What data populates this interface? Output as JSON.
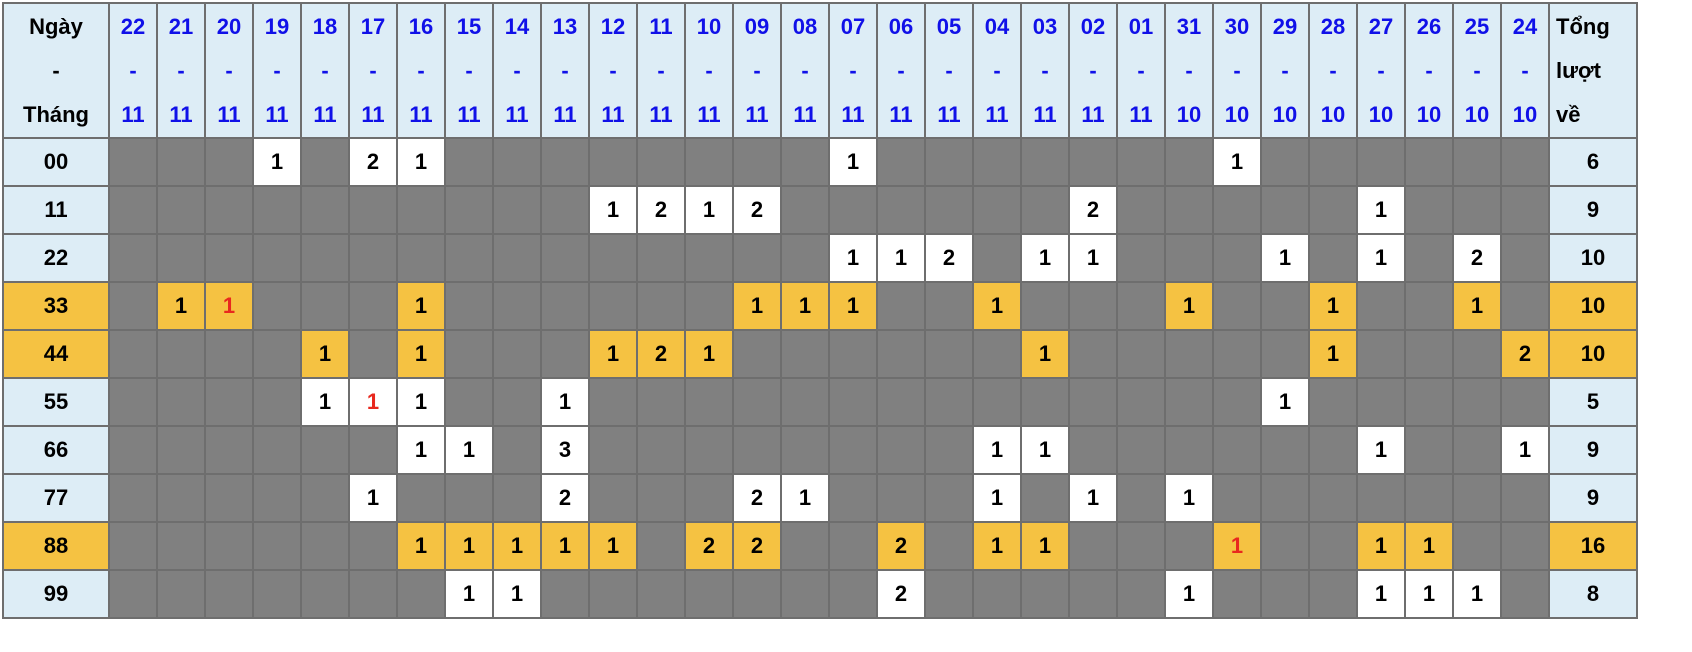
{
  "header": {
    "first": [
      "Ngày",
      "-",
      "Tháng"
    ],
    "last": [
      "Tổng",
      "lượt",
      "về"
    ],
    "dates": [
      [
        "22",
        "11"
      ],
      [
        "21",
        "11"
      ],
      [
        "20",
        "11"
      ],
      [
        "19",
        "11"
      ],
      [
        "18",
        "11"
      ],
      [
        "17",
        "11"
      ],
      [
        "16",
        "11"
      ],
      [
        "15",
        "11"
      ],
      [
        "14",
        "11"
      ],
      [
        "13",
        "11"
      ],
      [
        "12",
        "11"
      ],
      [
        "11",
        "11"
      ],
      [
        "10",
        "11"
      ],
      [
        "09",
        "11"
      ],
      [
        "08",
        "11"
      ],
      [
        "07",
        "11"
      ],
      [
        "06",
        "11"
      ],
      [
        "05",
        "11"
      ],
      [
        "04",
        "11"
      ],
      [
        "03",
        "11"
      ],
      [
        "02",
        "11"
      ],
      [
        "01",
        "11"
      ],
      [
        "31",
        "10"
      ],
      [
        "30",
        "10"
      ],
      [
        "29",
        "10"
      ],
      [
        "28",
        "10"
      ],
      [
        "27",
        "10"
      ],
      [
        "26",
        "10"
      ],
      [
        "25",
        "10"
      ],
      [
        "24",
        "10"
      ]
    ]
  },
  "colors": {
    "header_bg": "#ddedf6",
    "date_text": "#1010e8",
    "empty_cell": "#808080",
    "hit_cell": "#ffffff",
    "highlight": "#f5c242",
    "red_text": "#e8281e"
  },
  "rows": [
    {
      "label": "00",
      "total": "6",
      "highlight": false,
      "red": [],
      "cells": [
        "",
        "",
        "",
        "1",
        "",
        "2",
        "1",
        "",
        "",
        "",
        "",
        "",
        "",
        "",
        "",
        "1",
        "",
        "",
        "",
        "",
        "",
        "",
        "",
        "1",
        "",
        "",
        "",
        "",
        "",
        ""
      ]
    },
    {
      "label": "11",
      "total": "9",
      "highlight": false,
      "red": [],
      "cells": [
        "",
        "",
        "",
        "",
        "",
        "",
        "",
        "",
        "",
        "",
        "1",
        "2",
        "1",
        "2",
        "",
        "",
        "",
        "",
        "",
        "",
        "2",
        "",
        "",
        "",
        "",
        "",
        "1",
        "",
        "",
        ""
      ]
    },
    {
      "label": "22",
      "total": "10",
      "highlight": false,
      "red": [],
      "cells": [
        "",
        "",
        "",
        "",
        "",
        "",
        "",
        "",
        "",
        "",
        "",
        "",
        "",
        "",
        "",
        "1",
        "1",
        "2",
        "",
        "1",
        "1",
        "",
        "",
        "",
        "1",
        "",
        "1",
        "",
        "2",
        ""
      ]
    },
    {
      "label": "33",
      "total": "10",
      "highlight": true,
      "red": [
        2
      ],
      "cells": [
        "",
        "1",
        "1",
        "",
        "",
        "",
        "1",
        "",
        "",
        "",
        "",
        "",
        "",
        "1",
        "1",
        "1",
        "",
        "",
        "1",
        "",
        "",
        "",
        "1",
        "",
        "",
        "1",
        "",
        "",
        "1",
        ""
      ]
    },
    {
      "label": "44",
      "total": "10",
      "highlight": true,
      "red": [],
      "cells": [
        "",
        "",
        "",
        "",
        "1",
        "",
        "1",
        "",
        "",
        "",
        "1",
        "2",
        "1",
        "",
        "",
        "",
        "",
        "",
        "",
        "1",
        "",
        "",
        "",
        "",
        "",
        "1",
        "",
        "",
        "",
        "2"
      ]
    },
    {
      "label": "55",
      "total": "5",
      "highlight": false,
      "red": [
        5
      ],
      "cells": [
        "",
        "",
        "",
        "",
        "1",
        "1",
        "1",
        "",
        "",
        "1",
        "",
        "",
        "",
        "",
        "",
        "",
        "",
        "",
        "",
        "",
        "",
        "",
        "",
        "",
        "1",
        "",
        "",
        "",
        "",
        ""
      ]
    },
    {
      "label": "66",
      "total": "9",
      "highlight": false,
      "red": [],
      "cells": [
        "",
        "",
        "",
        "",
        "",
        "",
        "1",
        "1",
        "",
        "3",
        "",
        "",
        "",
        "",
        "",
        "",
        "",
        "",
        "1",
        "1",
        "",
        "",
        "",
        "",
        "",
        "",
        "1",
        "",
        "",
        "1"
      ]
    },
    {
      "label": "77",
      "total": "9",
      "highlight": false,
      "red": [],
      "cells": [
        "",
        "",
        "",
        "",
        "",
        "1",
        "",
        "",
        "",
        "2",
        "",
        "",
        "",
        "2",
        "1",
        "",
        "",
        "",
        "1",
        "",
        "1",
        "",
        "1",
        "",
        "",
        "",
        "",
        "",
        "",
        ""
      ]
    },
    {
      "label": "88",
      "total": "16",
      "highlight": true,
      "red": [
        23
      ],
      "cells": [
        "",
        "",
        "",
        "",
        "",
        "",
        "1",
        "1",
        "1",
        "1",
        "1",
        "",
        "2",
        "2",
        "",
        "",
        "2",
        "",
        "1",
        "1",
        "",
        "",
        "",
        "1",
        "",
        "",
        "1",
        "1",
        "",
        ""
      ]
    },
    {
      "label": "99",
      "total": "8",
      "highlight": false,
      "red": [],
      "cells": [
        "",
        "",
        "",
        "",
        "",
        "",
        "",
        "1",
        "1",
        "",
        "",
        "",
        "",
        "",
        "",
        "",
        "2",
        "",
        "",
        "",
        "",
        "",
        "1",
        "",
        "",
        "",
        "1",
        "1",
        "1",
        ""
      ]
    }
  ]
}
